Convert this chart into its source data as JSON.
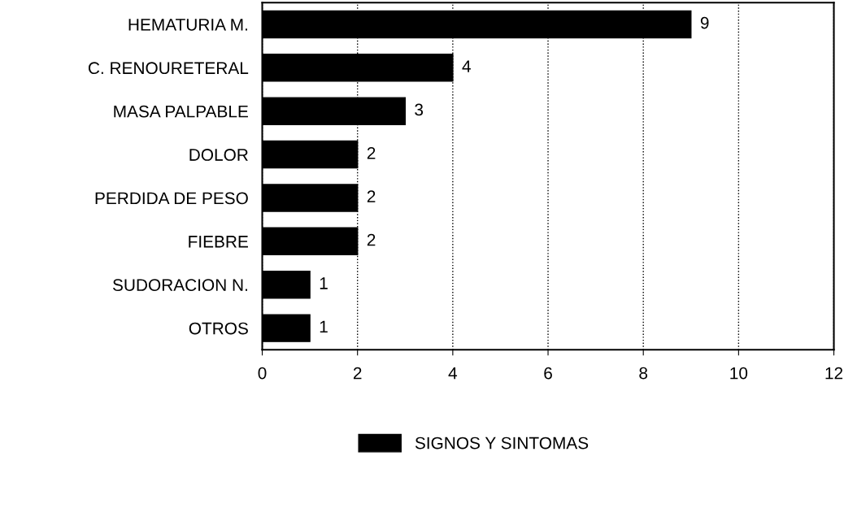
{
  "chart_data": {
    "type": "bar",
    "orientation": "horizontal",
    "categories": [
      "HEMATURIA M.",
      "C. RENOURETERAL",
      "MASA PALPABLE",
      "DOLOR",
      "PERDIDA DE PESO",
      "FIEBRE",
      "SUDORACION N.",
      "OTROS"
    ],
    "series": [
      {
        "name": "SIGNOS Y SINTOMAS",
        "color": "#000000",
        "values": [
          9,
          4,
          3,
          2,
          2,
          2,
          1,
          1
        ]
      }
    ],
    "xlim": [
      0,
      12
    ],
    "xticks": [
      0,
      2,
      4,
      6,
      8,
      10,
      12
    ],
    "grid": "x",
    "data_labels": true,
    "legend": "bottom"
  }
}
